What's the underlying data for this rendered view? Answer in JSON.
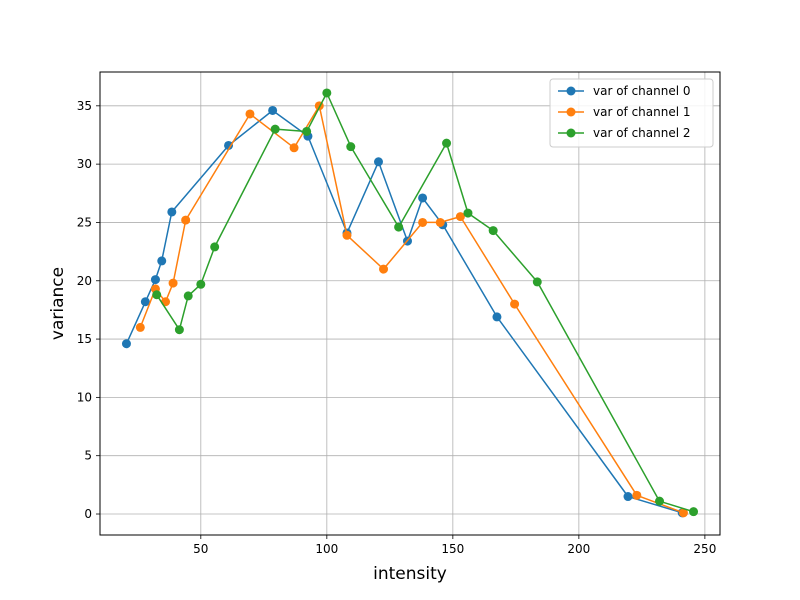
{
  "chart_data": {
    "type": "line",
    "xlabel": "intensity",
    "ylabel": "variance",
    "xlim": [
      10,
      256
    ],
    "ylim": [
      -1.8,
      37.9
    ],
    "xticks": [
      50,
      100,
      150,
      200,
      250
    ],
    "yticks": [
      0,
      5,
      10,
      15,
      20,
      25,
      30,
      35
    ],
    "grid": true,
    "legend_position": "top-right",
    "series": [
      {
        "name": "var of channel 0",
        "color": "#1f77b4",
        "x": [
          20.5,
          28,
          32,
          34.5,
          38.5,
          61,
          78.5,
          92.5,
          108,
          120.5,
          132,
          138,
          146,
          167.5,
          219.5,
          241
        ],
        "y": [
          14.6,
          18.2,
          20.1,
          21.7,
          25.9,
          31.6,
          34.6,
          32.4,
          24.1,
          30.2,
          23.4,
          27.1,
          24.8,
          16.9,
          1.5,
          0.1
        ]
      },
      {
        "name": "var of channel 1",
        "color": "#ff7f0e",
        "x": [
          26,
          32,
          36,
          39,
          44,
          69.5,
          87,
          97,
          108,
          122.5,
          138,
          145,
          153,
          174.5,
          223,
          241.5
        ],
        "y": [
          16.0,
          19.3,
          18.2,
          19.8,
          25.2,
          34.3,
          31.4,
          35.0,
          23.9,
          21.0,
          25.0,
          25.0,
          25.5,
          18.0,
          1.6,
          0.1
        ]
      },
      {
        "name": "var of channel 2",
        "color": "#2ca02c",
        "x": [
          32.5,
          41.5,
          45,
          50,
          55.5,
          79.5,
          92,
          100,
          109.5,
          128.5,
          147.5,
          156,
          166,
          183.5,
          232,
          245.5
        ],
        "y": [
          18.8,
          15.8,
          18.7,
          19.7,
          22.9,
          33.0,
          32.8,
          36.1,
          31.5,
          24.6,
          31.8,
          25.8,
          24.3,
          19.9,
          1.1,
          0.2
        ]
      }
    ]
  }
}
